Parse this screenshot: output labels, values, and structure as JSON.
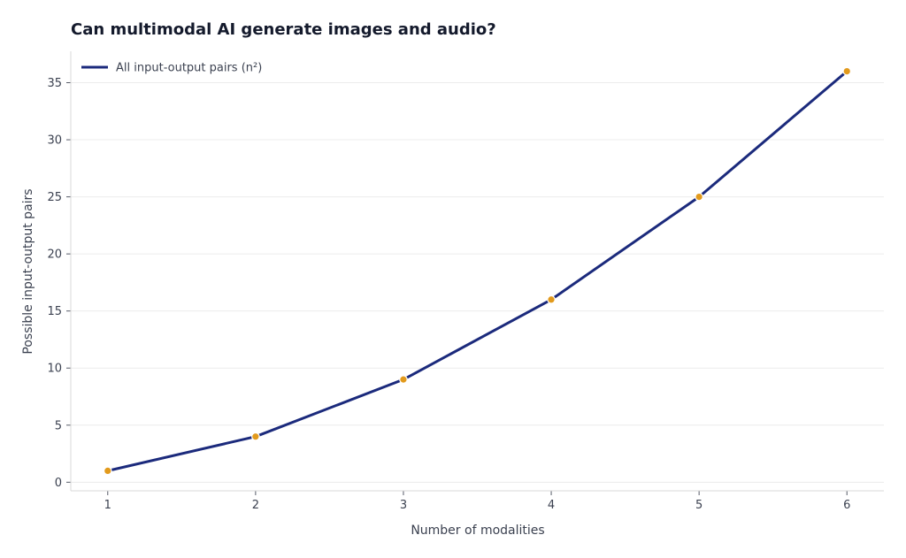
{
  "chart_data": {
    "type": "line",
    "title": "Can multimodal AI generate images and audio?",
    "xlabel": "Number of modalities",
    "ylabel": "Possible input-output pairs",
    "x": [
      1,
      2,
      3,
      4,
      5,
      6
    ],
    "series": [
      {
        "name": "All input-output pairs (n²)",
        "values": [
          1,
          4,
          9,
          16,
          25,
          36
        ]
      }
    ],
    "xticks": [
      1,
      2,
      3,
      4,
      5,
      6
    ],
    "yticks": [
      0,
      5,
      10,
      15,
      20,
      25,
      30,
      35
    ],
    "xlim": [
      0.75,
      6.25
    ],
    "ylim": [
      -0.75,
      37.75
    ],
    "grid": "horizontal",
    "legend": "top-left",
    "colors": {
      "line": "#1b2a7c",
      "marker": "#e29a1c"
    }
  }
}
